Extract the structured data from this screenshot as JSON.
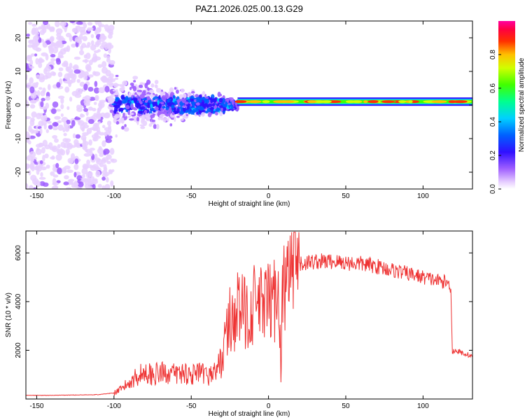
{
  "title": "PAZ1.2026.025.00.13.G29",
  "chart_data": [
    {
      "type": "heatmap",
      "xlabel": "Height of straight line (km)",
      "ylabel": "Frequency (Hz)",
      "xlim": [
        -157,
        132
      ],
      "ylim": [
        -25,
        25
      ],
      "xticks": [
        -150,
        -100,
        -50,
        0,
        50,
        100
      ],
      "yticks": [
        -20,
        -10,
        0,
        10,
        20
      ],
      "colorbar": {
        "label": "Normalized spectral amplitude",
        "range": [
          0,
          1
        ],
        "ticks": [
          0.0,
          0.2,
          0.4,
          0.6,
          0.8
        ]
      },
      "grid": false,
      "description_points": {
        "noise_region_x": [
          -157,
          -100
        ],
        "scattered_region_x": [
          -100,
          -20
        ],
        "stable_line_x": [
          -20,
          132
        ],
        "stable_line_frequency": 1.0
      }
    },
    {
      "type": "line",
      "xlabel": "Height of straight line (km)",
      "ylabel": "SNR (10 * v/v)",
      "xlim": [
        -157,
        132
      ],
      "ylim": [
        0,
        6900
      ],
      "xticks": [
        -150,
        -100,
        -50,
        0,
        50,
        100
      ],
      "yticks": [
        2000,
        4000,
        6000
      ],
      "color": "#ee3333",
      "grid": false,
      "x": [
        -157,
        -140,
        -120,
        -110,
        -100,
        -95,
        -90,
        -85,
        -80,
        -75,
        -70,
        -65,
        -60,
        -55,
        -50,
        -45,
        -40,
        -35,
        -30,
        -28,
        -25,
        -22,
        -20,
        -15,
        -10,
        -8,
        -5,
        -2,
        0,
        3,
        5,
        7,
        8,
        9,
        10,
        12,
        15,
        20,
        25,
        30,
        40,
        50,
        60,
        70,
        80,
        90,
        100,
        110,
        115,
        118,
        119,
        120,
        125,
        130,
        132
      ],
      "y": [
        150,
        150,
        170,
        180,
        250,
        400,
        700,
        950,
        1100,
        1000,
        1050,
        1100,
        1000,
        1100,
        1000,
        1050,
        950,
        1100,
        1600,
        2500,
        3200,
        3400,
        3700,
        3500,
        3800,
        4000,
        3800,
        3900,
        3900,
        4000,
        4300,
        4600,
        600,
        4300,
        4500,
        4800,
        5200,
        5500,
        5600,
        5650,
        5650,
        5600,
        5550,
        5450,
        5300,
        5150,
        5000,
        4850,
        4800,
        4600,
        1900,
        2000,
        1900,
        1800,
        1750
      ]
    }
  ]
}
